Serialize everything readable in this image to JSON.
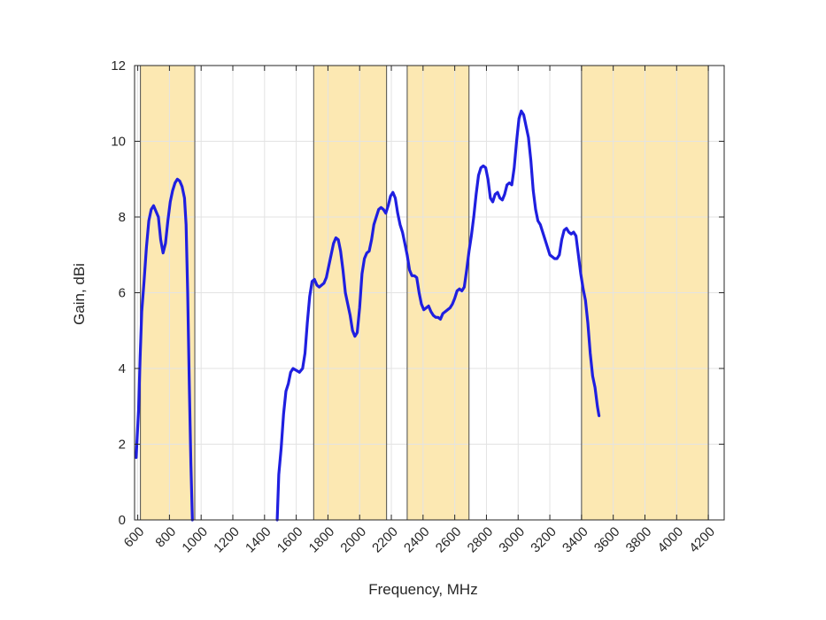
{
  "chart_data": {
    "type": "line",
    "title": "",
    "xlabel": "Frequency, MHz",
    "ylabel": "Gain, dBi",
    "xlim": [
      580,
      4300
    ],
    "ylim": [
      0,
      12
    ],
    "grid": true,
    "x_ticks": [
      600,
      800,
      1000,
      1200,
      1400,
      1600,
      1800,
      2000,
      2200,
      2400,
      2600,
      2800,
      3000,
      3200,
      3400,
      3600,
      3800,
      4000,
      4200
    ],
    "y_ticks": [
      0,
      2,
      4,
      6,
      8,
      10,
      12
    ],
    "bands": [
      [
        617,
        960
      ],
      [
        1710,
        2170
      ],
      [
        2300,
        2690
      ],
      [
        3400,
        4200
      ]
    ],
    "colors": {
      "line": "#1f1fe0",
      "band_fill": "#fce8b2",
      "band_edge": "#4a4a4a",
      "grid": "#e3e3e3",
      "axis": "#262626"
    },
    "series": [
      {
        "segments": [
          [
            [
              590,
              1.65
            ],
            [
              605,
              2.9
            ],
            [
              615,
              4.3
            ],
            [
              625,
              5.5
            ],
            [
              640,
              6.3
            ],
            [
              655,
              7.2
            ],
            [
              670,
              7.9
            ],
            [
              685,
              8.2
            ],
            [
              700,
              8.3
            ],
            [
              715,
              8.15
            ],
            [
              730,
              8.0
            ],
            [
              745,
              7.4
            ],
            [
              760,
              7.05
            ],
            [
              775,
              7.3
            ],
            [
              790,
              7.9
            ],
            [
              805,
              8.4
            ],
            [
              820,
              8.7
            ],
            [
              835,
              8.9
            ],
            [
              850,
              9.0
            ],
            [
              865,
              8.95
            ],
            [
              880,
              8.8
            ],
            [
              895,
              8.5
            ],
            [
              905,
              7.8
            ],
            [
              915,
              6.0
            ],
            [
              925,
              3.6
            ],
            [
              935,
              1.5
            ],
            [
              945,
              0.0
            ]
          ],
          [
            [
              1480,
              0.0
            ],
            [
              1490,
              1.2
            ],
            [
              1505,
              1.9
            ],
            [
              1520,
              2.8
            ],
            [
              1535,
              3.4
            ],
            [
              1550,
              3.6
            ],
            [
              1565,
              3.9
            ],
            [
              1580,
              4.0
            ],
            [
              1600,
              3.95
            ],
            [
              1620,
              3.9
            ],
            [
              1640,
              4.0
            ],
            [
              1655,
              4.4
            ],
            [
              1670,
              5.2
            ],
            [
              1685,
              5.9
            ],
            [
              1700,
              6.3
            ],
            [
              1715,
              6.35
            ],
            [
              1730,
              6.2
            ],
            [
              1745,
              6.15
            ],
            [
              1760,
              6.2
            ],
            [
              1775,
              6.25
            ],
            [
              1790,
              6.4
            ],
            [
              1805,
              6.7
            ],
            [
              1820,
              7.0
            ],
            [
              1835,
              7.3
            ],
            [
              1850,
              7.45
            ],
            [
              1865,
              7.4
            ],
            [
              1880,
              7.1
            ],
            [
              1895,
              6.6
            ],
            [
              1910,
              6.0
            ],
            [
              1925,
              5.7
            ],
            [
              1940,
              5.4
            ],
            [
              1955,
              5.0
            ],
            [
              1970,
              4.85
            ],
            [
              1985,
              4.95
            ],
            [
              2000,
              5.6
            ],
            [
              2015,
              6.5
            ],
            [
              2030,
              6.9
            ],
            [
              2045,
              7.05
            ],
            [
              2060,
              7.1
            ],
            [
              2075,
              7.4
            ],
            [
              2090,
              7.8
            ],
            [
              2105,
              8.0
            ],
            [
              2120,
              8.2
            ],
            [
              2135,
              8.25
            ],
            [
              2150,
              8.2
            ],
            [
              2165,
              8.1
            ],
            [
              2180,
              8.3
            ],
            [
              2195,
              8.55
            ],
            [
              2210,
              8.65
            ],
            [
              2225,
              8.5
            ],
            [
              2240,
              8.1
            ],
            [
              2255,
              7.8
            ],
            [
              2270,
              7.6
            ],
            [
              2285,
              7.3
            ],
            [
              2300,
              7.0
            ],
            [
              2315,
              6.6
            ],
            [
              2330,
              6.45
            ],
            [
              2345,
              6.45
            ],
            [
              2360,
              6.4
            ],
            [
              2375,
              6.0
            ],
            [
              2390,
              5.7
            ],
            [
              2405,
              5.55
            ],
            [
              2420,
              5.6
            ],
            [
              2435,
              5.65
            ],
            [
              2450,
              5.5
            ],
            [
              2465,
              5.4
            ],
            [
              2480,
              5.35
            ],
            [
              2495,
              5.35
            ],
            [
              2510,
              5.3
            ],
            [
              2525,
              5.45
            ],
            [
              2540,
              5.5
            ],
            [
              2555,
              5.55
            ],
            [
              2570,
              5.6
            ],
            [
              2585,
              5.7
            ],
            [
              2600,
              5.85
            ],
            [
              2615,
              6.05
            ],
            [
              2630,
              6.1
            ],
            [
              2645,
              6.05
            ],
            [
              2660,
              6.15
            ],
            [
              2675,
              6.6
            ],
            [
              2690,
              7.1
            ],
            [
              2705,
              7.5
            ],
            [
              2720,
              8.0
            ],
            [
              2735,
              8.6
            ],
            [
              2750,
              9.1
            ],
            [
              2765,
              9.3
            ],
            [
              2780,
              9.35
            ],
            [
              2795,
              9.3
            ],
            [
              2810,
              9.0
            ],
            [
              2825,
              8.5
            ],
            [
              2840,
              8.4
            ],
            [
              2855,
              8.6
            ],
            [
              2870,
              8.65
            ],
            [
              2885,
              8.5
            ],
            [
              2900,
              8.45
            ],
            [
              2915,
              8.6
            ],
            [
              2930,
              8.85
            ],
            [
              2945,
              8.9
            ],
            [
              2960,
              8.85
            ],
            [
              2975,
              9.3
            ],
            [
              2990,
              10.0
            ],
            [
              3005,
              10.6
            ],
            [
              3020,
              10.8
            ],
            [
              3035,
              10.7
            ],
            [
              3050,
              10.4
            ],
            [
              3065,
              10.1
            ],
            [
              3080,
              9.5
            ],
            [
              3095,
              8.7
            ],
            [
              3110,
              8.2
            ],
            [
              3125,
              7.9
            ],
            [
              3140,
              7.8
            ],
            [
              3155,
              7.6
            ],
            [
              3170,
              7.4
            ],
            [
              3185,
              7.2
            ],
            [
              3200,
              7.0
            ],
            [
              3215,
              6.95
            ],
            [
              3230,
              6.9
            ],
            [
              3245,
              6.9
            ],
            [
              3260,
              7.0
            ],
            [
              3275,
              7.4
            ],
            [
              3290,
              7.65
            ],
            [
              3305,
              7.7
            ],
            [
              3320,
              7.6
            ],
            [
              3335,
              7.55
            ],
            [
              3350,
              7.6
            ],
            [
              3365,
              7.5
            ],
            [
              3380,
              7.0
            ],
            [
              3395,
              6.5
            ],
            [
              3410,
              6.1
            ],
            [
              3425,
              5.8
            ],
            [
              3440,
              5.2
            ],
            [
              3455,
              4.4
            ],
            [
              3470,
              3.8
            ],
            [
              3485,
              3.5
            ],
            [
              3500,
              3.0
            ],
            [
              3510,
              2.75
            ]
          ]
        ]
      }
    ]
  }
}
